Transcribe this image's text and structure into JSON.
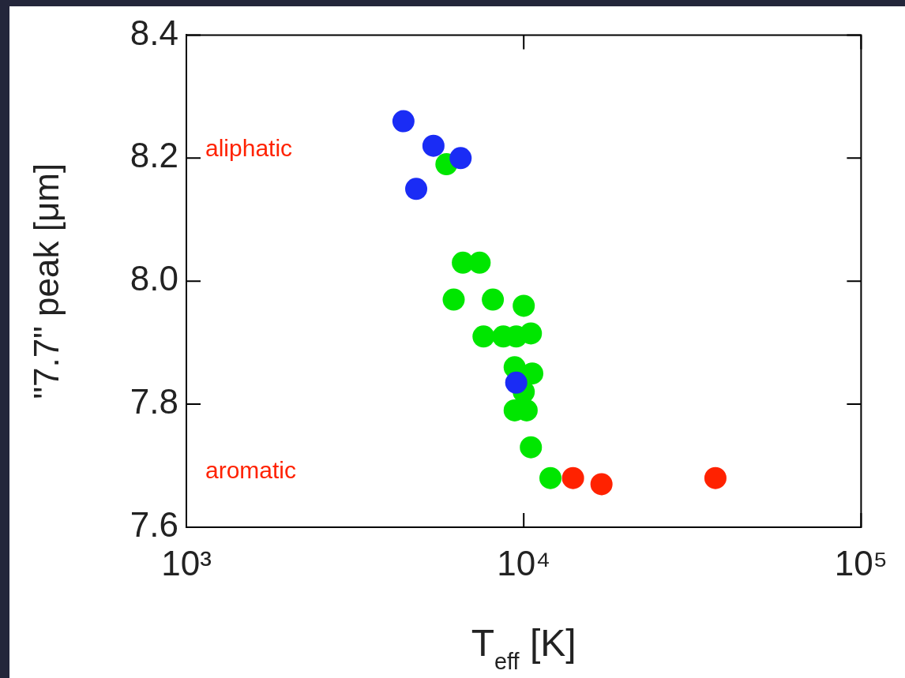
{
  "chart_data": {
    "type": "scatter",
    "xlabel": "T$_{eff}$ [K]",
    "ylabel": "\"7.7\" peak [μm]",
    "log": "x",
    "xlim": [
      1000,
      100000
    ],
    "xticks": [
      {
        "value": 1000,
        "label": "10³"
      },
      {
        "value": 10000,
        "label": "10⁴"
      },
      {
        "value": 100000,
        "label": "10⁵"
      }
    ],
    "ylim": [
      7.6,
      8.4
    ],
    "yticks": [
      {
        "value": 7.6,
        "label": "7.6"
      },
      {
        "value": 7.8,
        "label": "7.8"
      },
      {
        "value": 8.0,
        "label": "8.0"
      },
      {
        "value": 8.2,
        "label": "8.2"
      },
      {
        "value": 8.4,
        "label": "8.4"
      }
    ],
    "grid": false,
    "legend": false,
    "marker": "circle",
    "series": [
      {
        "color": "#1a2cf5",
        "x": [
          4400,
          5400,
          6500,
          4800,
          9500
        ],
        "values": [
          8.26,
          8.22,
          8.2,
          8.15,
          7.835
        ]
      },
      {
        "color": "#00e600",
        "x": [
          5900,
          6600,
          7400,
          6200,
          8100,
          10000,
          7600,
          8700,
          9500,
          10500,
          9400,
          10600,
          10000,
          9400,
          10200,
          10500,
          12000
        ],
        "values": [
          8.19,
          8.03,
          8.03,
          7.97,
          7.97,
          7.96,
          7.91,
          7.91,
          7.91,
          7.915,
          7.86,
          7.85,
          7.82,
          7.79,
          7.79,
          7.73,
          7.68
        ]
      },
      {
        "color": "#ff2200",
        "x": [
          14000,
          17000,
          37000
        ],
        "values": [
          7.68,
          7.67,
          7.68
        ]
      }
    ],
    "annotations": [
      "aliphatic",
      "aromatic"
    ]
  }
}
